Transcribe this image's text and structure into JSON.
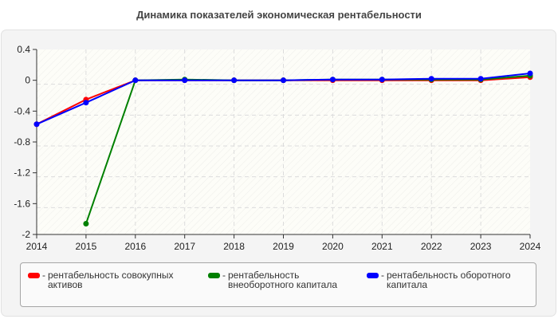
{
  "chart_data": {
    "type": "line",
    "title": "Динамика показателей экономическая рентабельности",
    "xlabel": "",
    "ylabel": "",
    "x": [
      2014,
      2015,
      2016,
      2017,
      2018,
      2019,
      2020,
      2021,
      2022,
      2023,
      2024
    ],
    "ylim": [
      -2,
      0.4
    ],
    "yticks": [
      0.4,
      0,
      -0.4,
      -0.8,
      -1.2,
      -1.6,
      -2
    ],
    "ytick_labels": [
      "0.4",
      "0",
      "-0.4",
      "-0.8",
      "-1.2",
      "-1.6",
      "-2"
    ],
    "xtick_labels": [
      "2014",
      "2015",
      "2016",
      "2017",
      "2018",
      "2019",
      "2020",
      "2021",
      "2022",
      "2023",
      "2024"
    ],
    "grid": true,
    "legend_position": "bottom",
    "series": [
      {
        "name": "рентабельность совокупных активов",
        "color": "#ff0000",
        "values": [
          -0.57,
          -0.25,
          0.0,
          0.0,
          0.0,
          0.0,
          0.0,
          0.0,
          0.0,
          0.0,
          0.04
        ]
      },
      {
        "name": "рентабельность внеоборотного капитала",
        "color": "#008000",
        "values": [
          null,
          -1.86,
          0.0,
          0.01,
          0.0,
          0.0,
          0.01,
          0.01,
          0.01,
          0.01,
          0.06
        ]
      },
      {
        "name": "рентабельность оборотного капитала",
        "color": "#0000ff",
        "values": [
          -0.57,
          -0.29,
          0.0,
          0.0,
          0.0,
          0.0,
          0.01,
          0.01,
          0.02,
          0.02,
          0.09
        ]
      }
    ]
  },
  "legend": {
    "items": [
      {
        "color": "#ff0000",
        "dash": "-",
        "label": "рентабельность совокупных\nактивов"
      },
      {
        "color": "#008000",
        "dash": "-",
        "label": "рентабельность\nвнеоборотного капитала"
      },
      {
        "color": "#0000ff",
        "dash": "-",
        "label": "рентабельность оборотного\nкапитала"
      }
    ]
  }
}
